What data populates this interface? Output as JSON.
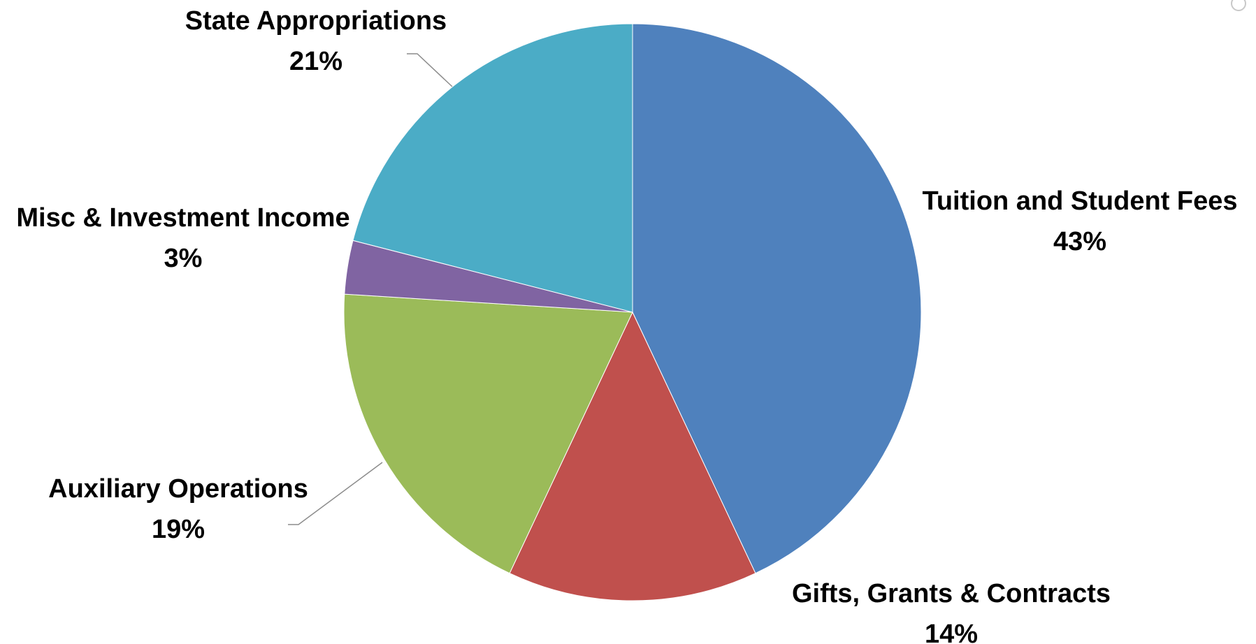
{
  "chart_data": {
    "type": "pie",
    "title": "",
    "start_angle_deg": 0,
    "direction": "clockwise",
    "slices": [
      {
        "label": "Tuition and Student Fees",
        "value": 43,
        "value_label": "43%",
        "color": "#4F81BD"
      },
      {
        "label": "Gifts, Grants & Contracts",
        "value": 14,
        "value_label": "14%",
        "color": "#C0504D"
      },
      {
        "label": "Auxiliary Operations",
        "value": 19,
        "value_label": "19%",
        "color": "#9BBB59"
      },
      {
        "label": "Misc & Investment Income",
        "value": 3,
        "value_label": "3%",
        "color": "#8064A2"
      },
      {
        "label": "State Appropriations",
        "value": 21,
        "value_label": "21%",
        "color": "#4BACC6"
      }
    ],
    "legend": "none",
    "data_labels": "outside with leader lines"
  }
}
